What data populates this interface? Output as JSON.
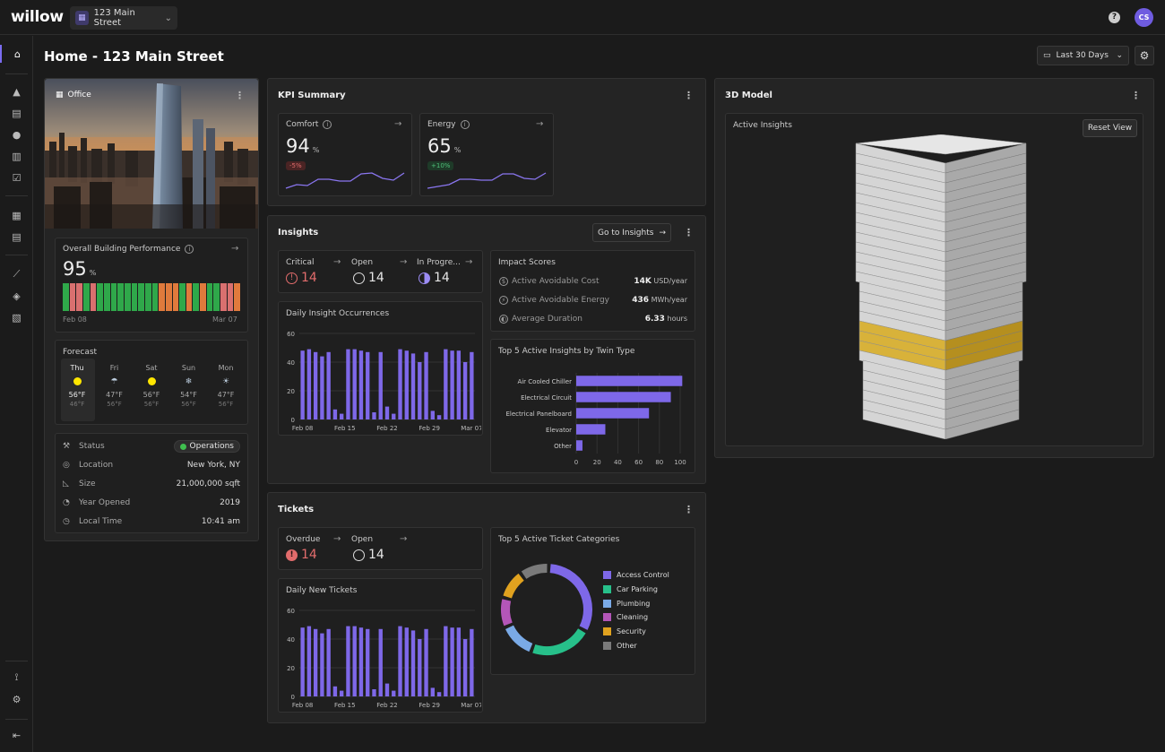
{
  "app": {
    "logo": "willow",
    "site": "123 Main Street",
    "help": "?",
    "avatar_initials": "CS"
  },
  "page": {
    "title": "Home - 123 Main Street",
    "date_range": "Last 30 Days"
  },
  "building": {
    "type": "Office",
    "performance": {
      "label": "Overall Building Performance",
      "value": "95",
      "unit": "%",
      "start": "Feb 08",
      "end": "Mar 07",
      "segments": [
        "g",
        "r",
        "r",
        "g",
        "r",
        "g",
        "g",
        "g",
        "g",
        "g",
        "g",
        "g",
        "g",
        "g",
        "o",
        "o",
        "o",
        "g",
        "o",
        "g",
        "o",
        "g",
        "g",
        "r",
        "r",
        "o"
      ]
    },
    "forecast": {
      "label": "Forecast",
      "days": [
        {
          "day": "Thu",
          "high": "56°F",
          "low": "46°F",
          "icon": "sun-icon"
        },
        {
          "day": "Fri",
          "high": "47°F",
          "low": "56°F",
          "icon": "rain-icon"
        },
        {
          "day": "Sat",
          "high": "56°F",
          "low": "56°F",
          "icon": "sun-icon"
        },
        {
          "day": "Sun",
          "high": "54°F",
          "low": "56°F",
          "icon": "snow-icon"
        },
        {
          "day": "Mon",
          "high": "47°F",
          "low": "56°F",
          "icon": "partly-cloudy-icon"
        }
      ]
    },
    "info": [
      {
        "key": "Status",
        "value": "Operations"
      },
      {
        "key": "Location",
        "value": "New York, NY"
      },
      {
        "key": "Size",
        "value": "21,000,000 sqft"
      },
      {
        "key": "Year Opened",
        "value": "2019"
      },
      {
        "key": "Local Time",
        "value": "10:41 am"
      }
    ]
  },
  "kpi": {
    "title": "KPI Summary",
    "comfort": {
      "label": "Comfort",
      "value": "94",
      "unit": "%",
      "delta": "-5%",
      "spark": [
        20,
        16,
        17,
        10,
        10,
        12,
        12,
        4,
        3,
        9,
        11,
        3
      ]
    },
    "energy": {
      "label": "Energy",
      "value": "65",
      "unit": "%",
      "delta": "+10%",
      "spark": [
        20,
        18,
        16,
        10,
        10,
        11,
        11,
        4,
        4,
        9,
        10,
        3
      ]
    }
  },
  "insights": {
    "title": "Insights",
    "go_label": "Go to Insights",
    "critical": {
      "label": "Critical",
      "value": "14"
    },
    "open": {
      "label": "Open",
      "value": "14"
    },
    "in_progress": {
      "label": "In Progre...",
      "value": "14"
    },
    "impact": {
      "title": "Impact Scores",
      "rows": [
        {
          "label": "Active Avoidable Cost",
          "value": "14K",
          "unit": "USD/year"
        },
        {
          "label": "Active Avoidable Energy",
          "value": "436",
          "unit": "MWh/year"
        },
        {
          "label": "Average Duration",
          "value": "6.33",
          "unit": "hours"
        }
      ]
    }
  },
  "tickets": {
    "title": "Tickets",
    "overdue": {
      "label": "Overdue",
      "value": "14"
    },
    "open": {
      "label": "Open",
      "value": "14"
    }
  },
  "model": {
    "title": "3D Model",
    "label": "Active Insights",
    "reset": "Reset View"
  },
  "chart_data": [
    {
      "type": "bar",
      "title": "Daily Insight Occurrences",
      "ylim": [
        0,
        60
      ],
      "yticks": [
        0,
        20,
        40,
        60
      ],
      "xticks": [
        "Feb 08",
        "Feb 15",
        "Feb 22",
        "Feb 29",
        "Mar 07"
      ],
      "values": [
        48,
        49,
        47,
        44,
        47,
        7,
        4,
        49,
        49,
        48,
        47,
        5,
        47,
        9,
        4,
        49,
        48,
        46,
        40,
        47,
        6,
        3,
        49,
        48,
        48,
        40,
        47
      ]
    },
    {
      "type": "bar",
      "orientation": "horizontal",
      "title": "Top 5 Active Insights by Twin Type",
      "xlim": [
        0,
        100
      ],
      "xticks": [
        0,
        20,
        40,
        60,
        80,
        100
      ],
      "categories": [
        "Air Cooled Chiller",
        "Electrical Circuit",
        "Electrical Panelboard",
        "Elevator",
        "Other"
      ],
      "values": [
        102,
        91,
        70,
        28,
        6
      ]
    },
    {
      "type": "bar",
      "title": "Daily New Tickets",
      "ylim": [
        0,
        60
      ],
      "yticks": [
        0,
        20,
        40,
        60
      ],
      "xticks": [
        "Feb 08",
        "Feb 15",
        "Feb 22",
        "Feb 29",
        "Mar 07"
      ],
      "values": [
        48,
        49,
        47,
        44,
        47,
        7,
        4,
        49,
        49,
        48,
        47,
        5,
        47,
        9,
        4,
        49,
        48,
        46,
        40,
        47,
        6,
        3,
        49,
        48,
        48,
        40,
        47
      ]
    },
    {
      "type": "pie",
      "title": "Top 5 Active Ticket Categories",
      "labels": [
        "Access Control",
        "Car Parking",
        "Plumbing",
        "Cleaning",
        "Security",
        "Other"
      ],
      "values": [
        30,
        21,
        12,
        10,
        10,
        10
      ],
      "colors": [
        "#7e68e8",
        "#27c08a",
        "#7aaae6",
        "#b356b8",
        "#e0a21f",
        "#7a7a7a"
      ]
    }
  ]
}
